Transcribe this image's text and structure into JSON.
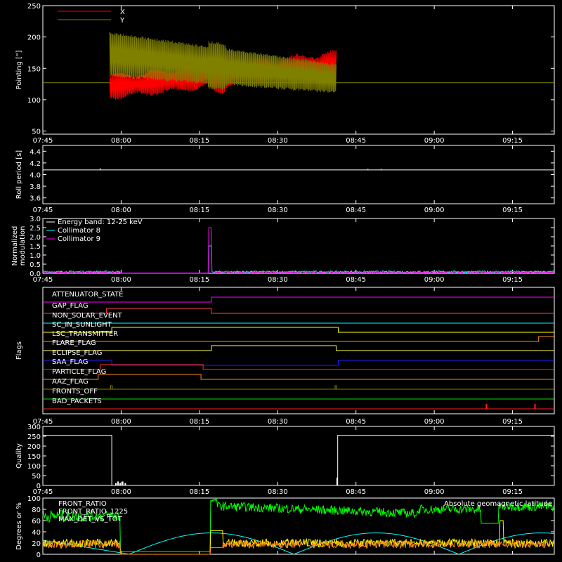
{
  "chart_data": [
    {
      "type": "line",
      "ylabel": "Pointing [\"]",
      "ylim": [
        45,
        250
      ],
      "yticks": [
        50,
        100,
        150,
        200,
        250
      ],
      "legend": "top-left",
      "series": [
        {
          "name": "X",
          "color": "#ff0000"
        },
        {
          "name": "Y",
          "color": "#808000"
        }
      ]
    },
    {
      "type": "line",
      "ylabel": "Roll period [s]",
      "ylim": [
        3.5,
        4.5
      ],
      "yticks": [
        "3.6",
        "3.8",
        "4.0",
        "4.2",
        "4.4"
      ],
      "series": [
        {
          "values": [
            4.08,
            4.08,
            4.08,
            4.08,
            4.08
          ],
          "color": "#ffffff"
        }
      ]
    },
    {
      "type": "line",
      "ylabel": "Normalized modulation",
      "ylim": [
        0,
        3.0
      ],
      "yticks": [
        "0.0",
        "0.5",
        "1.0",
        "1.5",
        "2.0",
        "2.5",
        "3.0"
      ],
      "legend": "top-left",
      "series": [
        {
          "name": "Energy band: 12-25 keV",
          "color": "#ffffff"
        },
        {
          "name": "Collimator 8",
          "color": "#00ffff"
        },
        {
          "name": "Collimator 9",
          "color": "#ff00ff"
        }
      ]
    },
    {
      "type": "line",
      "ylabel": "Flags",
      "flags": [
        {
          "name": "ATTENUATOR_STATE",
          "color": "#ff00ff"
        },
        {
          "name": "GAP_FLAG",
          "color": "#ff4040"
        },
        {
          "name": "NON_SOLAR_EVENT",
          "color": "#00ffff"
        },
        {
          "name": "SC_IN_SUNLIGHT",
          "color": "#ffff00"
        },
        {
          "name": "LSC_TRANSMITTER",
          "color": "#ff8c1a"
        },
        {
          "name": "FLARE_FLAG",
          "color": "#ffff40"
        },
        {
          "name": "ECLIPSE_FLAG",
          "color": "#1e1eff"
        },
        {
          "name": "SAA_FLAG",
          "color": "#ff3030"
        },
        {
          "name": "PARTICLE_FLAG",
          "color": "#ff8c1a"
        },
        {
          "name": "AAZ_FLAG",
          "color": "#808000"
        },
        {
          "name": "FRONTS_OFF",
          "color": "#00e000"
        },
        {
          "name": "BAD_PACKETS",
          "color": "#ff2020"
        }
      ]
    },
    {
      "type": "line",
      "ylabel": "Quality",
      "ylim": [
        0,
        300
      ],
      "yticks": [
        0,
        50,
        100,
        150,
        200,
        250,
        300
      ],
      "series": [
        {
          "color": "#ffffff"
        }
      ]
    },
    {
      "type": "line",
      "ylabel": "Degrees or %",
      "ylim": [
        0,
        100
      ],
      "yticks": [
        0,
        20,
        40,
        60,
        80,
        100
      ],
      "legend": "top-left",
      "series": [
        {
          "name": "FRONT_RATIO",
          "color": "#ffff00"
        },
        {
          "name": "FRONT_RATIO_1225",
          "color": "#00ff00"
        },
        {
          "name": "MAX_DET_VS_TOT",
          "color": "#ff8c1a"
        },
        {
          "name": "Absolute geomagnetic latitude",
          "color": "#00ffff"
        }
      ]
    }
  ],
  "time_axis": {
    "ticks": [
      "07:45",
      "08:00",
      "08:15",
      "08:30",
      "08:45",
      "09:00",
      "09:15"
    ],
    "minutes": [
      465,
      480,
      495,
      510,
      525,
      540,
      555
    ],
    "range_minutes": [
      465,
      563
    ]
  }
}
